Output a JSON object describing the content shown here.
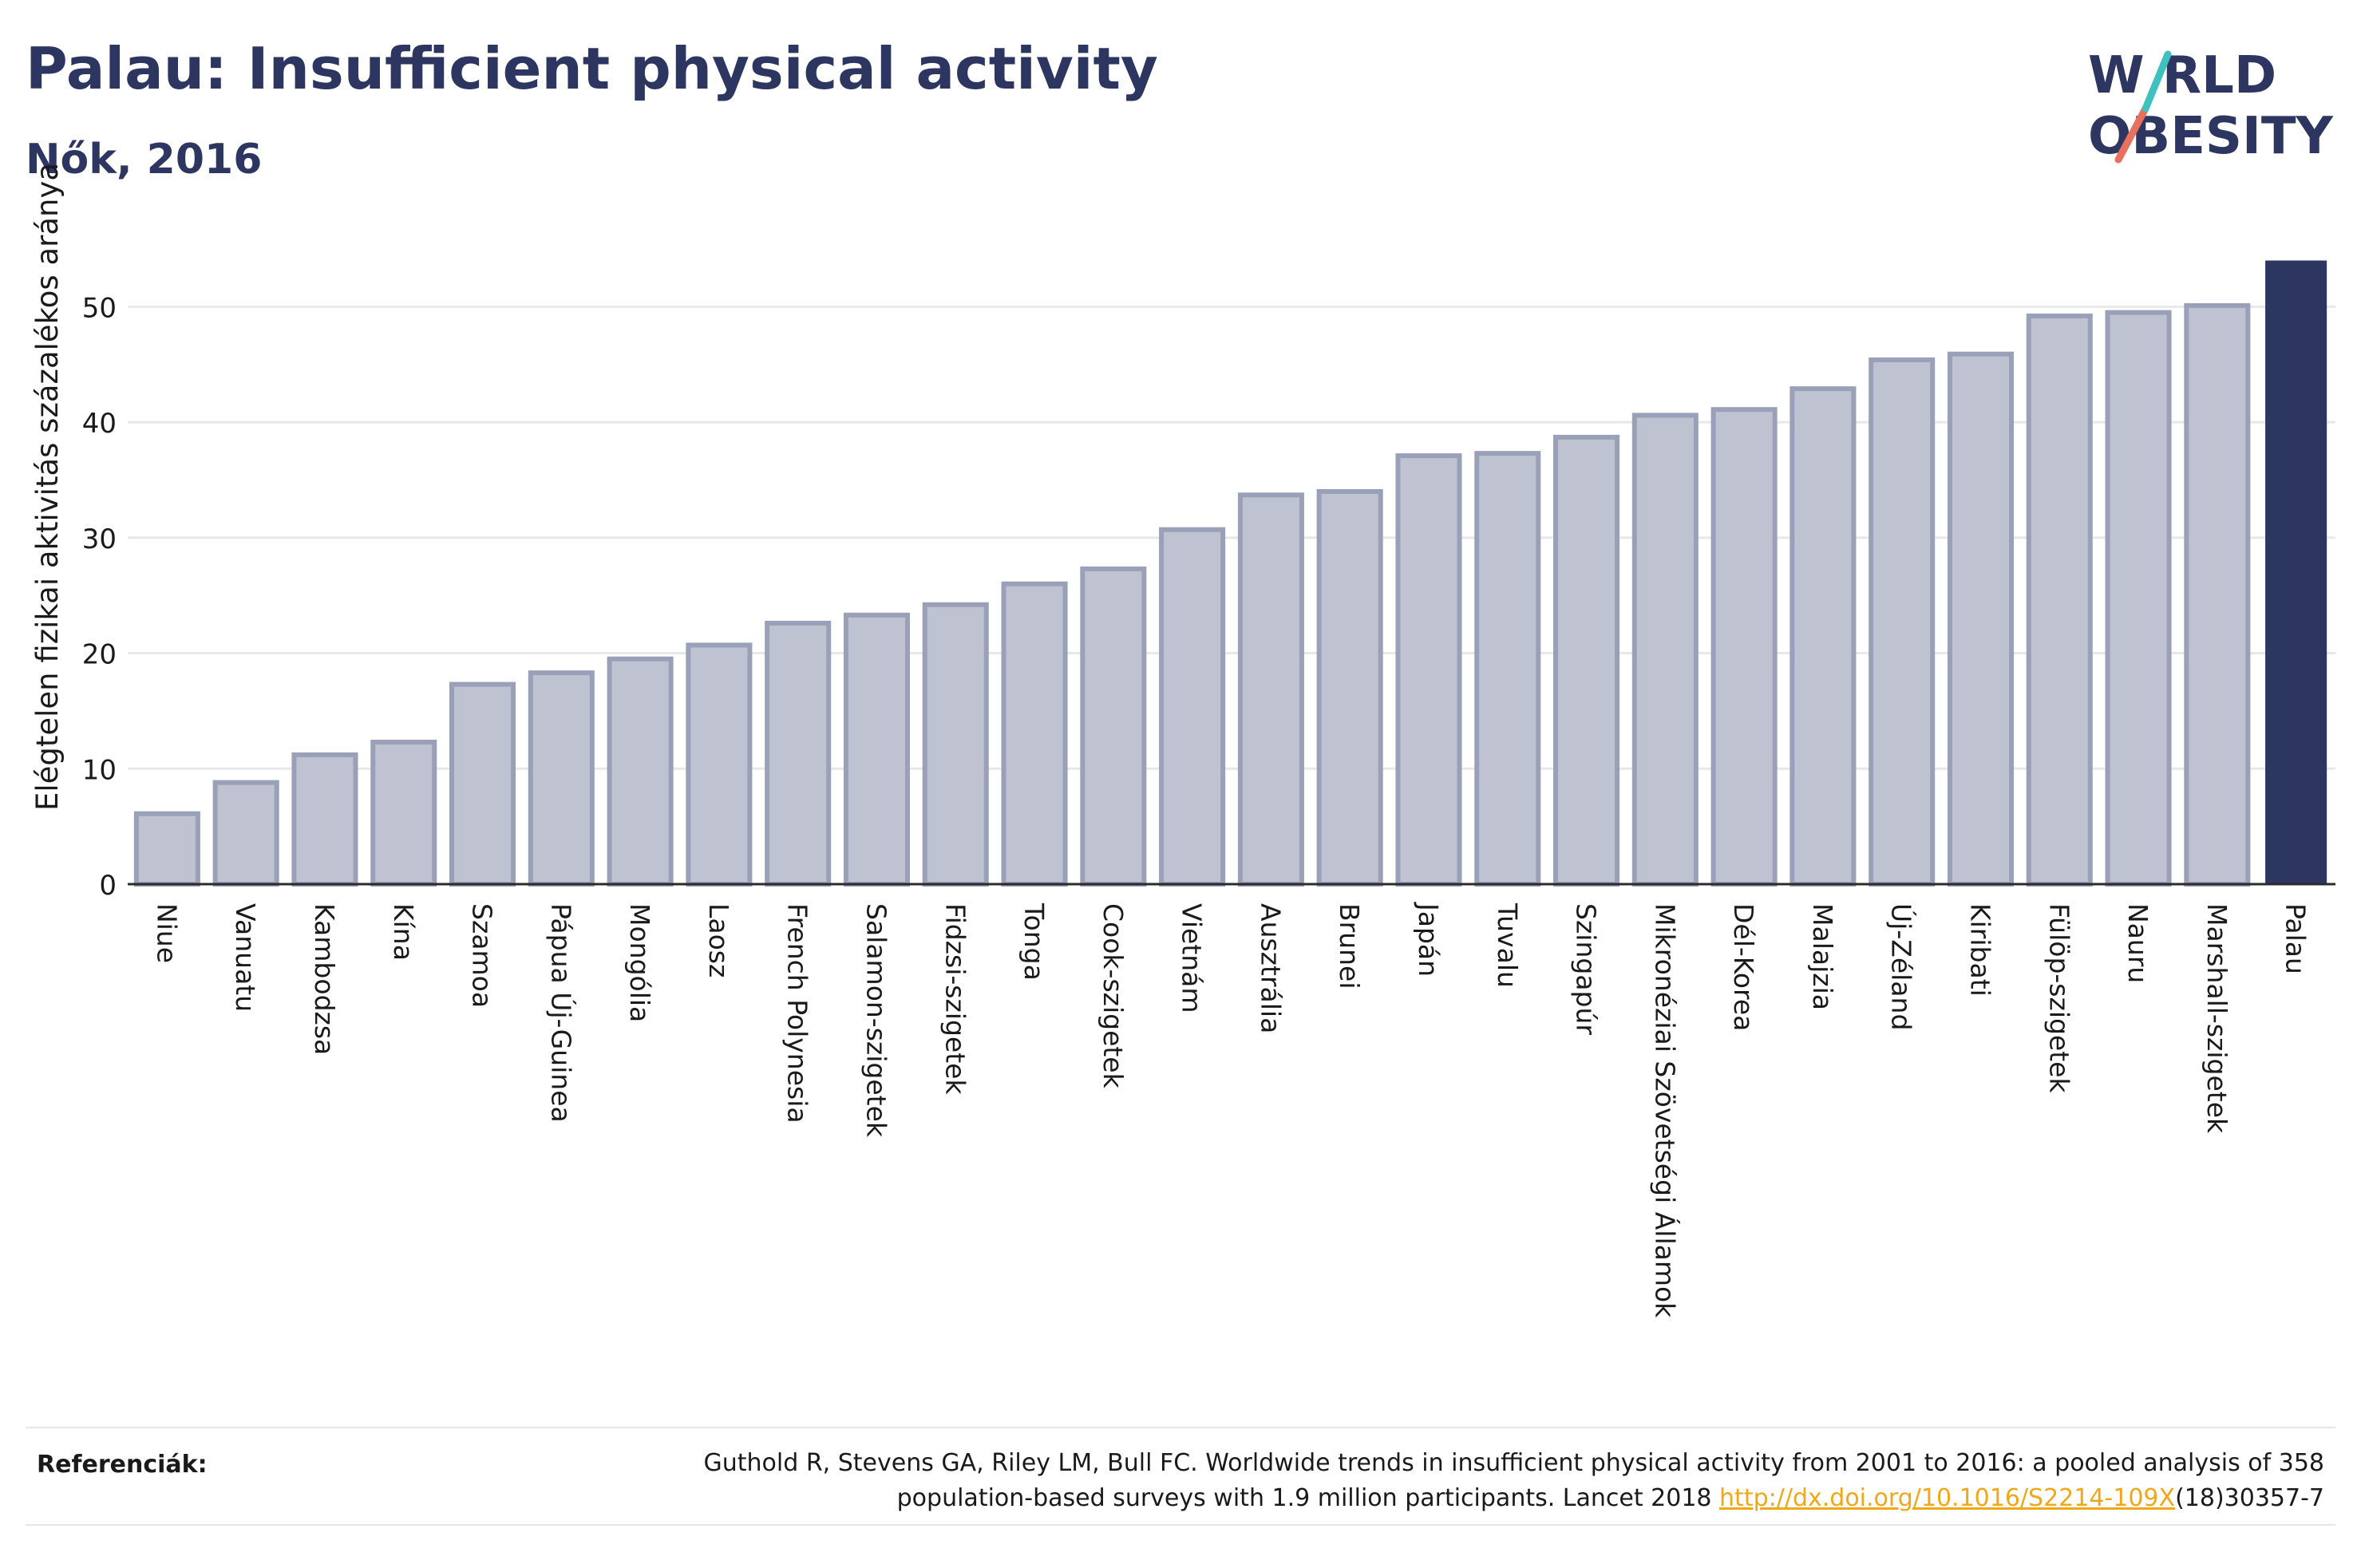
{
  "header": {
    "title": "Palau: Insufficient physical activity",
    "subtitle": "Nők, 2016"
  },
  "logo": {
    "line1": "W RLD",
    "line2": "OBESITY",
    "colors": {
      "text": "#2d3561",
      "slash_teal": "#3fc1c0",
      "slash_coral": "#e8705f"
    }
  },
  "chart_data": {
    "type": "bar",
    "title": "",
    "xlabel": "",
    "ylabel": "Elégtelen fizikai aktivitás százalékos aránya",
    "ylim": [
      0,
      55
    ],
    "yticks": [
      0,
      10,
      20,
      30,
      40,
      50
    ],
    "grid": true,
    "categories": [
      "Niue",
      "Vanuatu",
      "Kambodzsa",
      "Kína",
      "Szamoa",
      "Pápua Új-Guinea",
      "Mongólia",
      "Laosz",
      "French Polynesia",
      "Salamon-szigetek",
      "Fidzsi-szigetek",
      "Tonga",
      "Cook-szigetek",
      "Vietnám",
      "Ausztrália",
      "Brunei",
      "Japán",
      "Tuvalu",
      "Szingapúr",
      "Mikronéziai Szövetségi Államok",
      "Dél-Korea",
      "Malajzia",
      "Új-Zéland",
      "Kiribati",
      "Fülöp-szigetek",
      "Nauru",
      "Marshall-szigetek",
      "Palau"
    ],
    "values": [
      6.1,
      8.8,
      11.2,
      12.3,
      17.3,
      18.3,
      19.5,
      20.7,
      22.6,
      23.3,
      24.2,
      26.0,
      27.3,
      30.7,
      33.7,
      34.0,
      37.1,
      37.3,
      38.7,
      40.6,
      41.1,
      42.9,
      45.4,
      45.9,
      49.2,
      49.5,
      50.1,
      54.0
    ],
    "highlight": "Palau",
    "colors": {
      "bar": "#bfc3d1",
      "bar_edge": "#9aa0b8",
      "highlight": "#2d3561",
      "grid": "#e8e8e8"
    }
  },
  "references": {
    "label": "Referenciák:",
    "text": "Guthold R, Stevens GA, Riley LM, Bull FC. Worldwide trends in insufficient physical activity from 2001 to 2016: a pooled analysis of 358 population-based surveys with 1.9 million participants. Lancet 2018 ",
    "link": "http://dx.doi.org/10.1016/S2214-109X",
    "suffix": "(18)30357-7"
  }
}
